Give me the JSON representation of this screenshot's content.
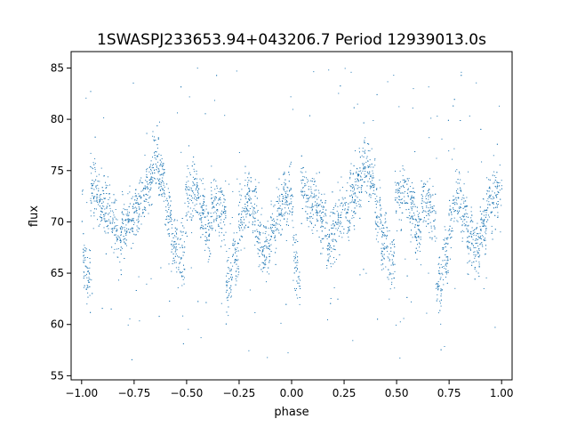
{
  "chart_data": {
    "type": "scatter",
    "title": "1SWASPJ233653.94+043206.7 Period 12939013.0s",
    "xlabel": "phase",
    "ylabel": "flux",
    "xlim": [
      -1.05,
      1.05
    ],
    "ylim": [
      54.6,
      86.6
    ],
    "xticks": [
      -1.0,
      -0.75,
      -0.5,
      -0.25,
      0.0,
      0.25,
      0.5,
      0.75,
      1.0
    ],
    "xtick_labels": [
      "−1.00",
      "−0.75",
      "−0.50",
      "−0.25",
      "0.00",
      "0.25",
      "0.50",
      "0.75",
      "1.00"
    ],
    "yticks": [
      55,
      60,
      65,
      70,
      75,
      80,
      85
    ],
    "ytick_labels": [
      "55",
      "60",
      "65",
      "70",
      "75",
      "80",
      "85"
    ],
    "grid": false,
    "legend": "none",
    "marker_color": "#1f77b4",
    "series": [
      {
        "description_of_shape": "phase-folded light curve, pattern repeats with period 1 in phase",
        "x": [
          -0.99,
          -0.97,
          -0.95,
          -0.92,
          -0.88,
          -0.85,
          -0.82,
          -0.8,
          -0.77,
          -0.74,
          -0.71,
          -0.68,
          -0.65,
          -0.62,
          -0.59,
          -0.56,
          -0.53,
          -0.49,
          -0.46,
          -0.43,
          -0.4,
          -0.37,
          -0.33,
          -0.3,
          -0.27,
          -0.24,
          -0.21,
          -0.18,
          -0.15,
          -0.12,
          -0.09,
          -0.06,
          -0.03,
          0.0,
          0.03,
          0.06,
          0.09
        ],
        "y": [
          66.5,
          65.0,
          73.5,
          72.0,
          71.0,
          70.0,
          68.0,
          69.5,
          70.5,
          71.0,
          72.5,
          74.0,
          76.0,
          74.5,
          71.0,
          68.0,
          66.5,
          72.0,
          73.0,
          71.5,
          69.0,
          72.0,
          71.0,
          64.0,
          67.0,
          70.5,
          72.5,
          71.0,
          68.5,
          67.5,
          69.5,
          71.5,
          72.5,
          71.0,
          72.0,
          73.0,
          71.5
        ]
      }
    ]
  }
}
